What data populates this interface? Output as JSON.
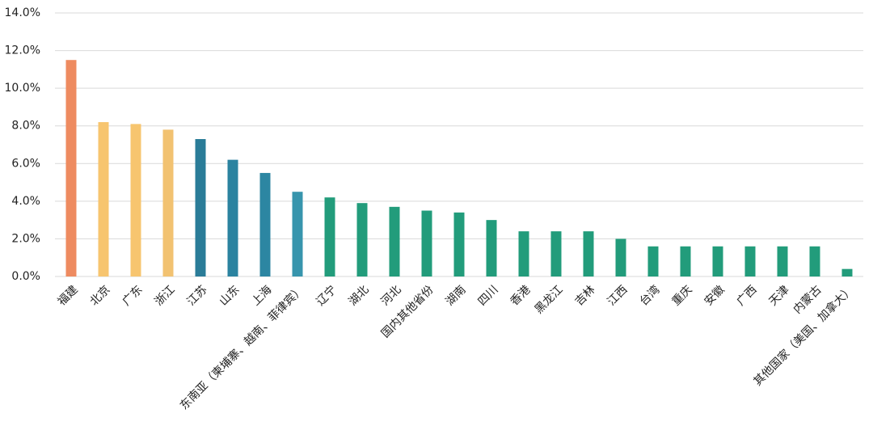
{
  "chart_data": {
    "type": "bar",
    "categories": [
      "福建",
      "北京",
      "广东",
      "浙江",
      "江苏",
      "山东",
      "上海",
      "东南亚（柬埔寨、越南、菲律宾）",
      "辽宁",
      "湖北",
      "河北",
      "国内其他省份",
      "湖南",
      "四川",
      "香港",
      "黑龙江",
      "吉林",
      "江西",
      "台湾",
      "重庆",
      "安徽",
      "广西",
      "天津",
      "内蒙古",
      "其他国家（美国、加拿大）"
    ],
    "values": [
      11.5,
      8.2,
      8.1,
      7.8,
      7.3,
      6.2,
      5.5,
      4.5,
      4.2,
      3.9,
      3.7,
      3.5,
      3.4,
      3.0,
      2.4,
      2.4,
      2.4,
      2.0,
      1.6,
      1.6,
      1.6,
      1.6,
      1.6,
      1.6,
      0.4
    ],
    "colors": [
      "#ee8b60",
      "#f7c56f",
      "#f7c56f",
      "#f2c271",
      "#2a7c98",
      "#2b83a0",
      "#2c86a2",
      "#3795ad",
      "#229c7b",
      "#229c7b",
      "#229c7b",
      "#229c7b",
      "#229c7b",
      "#229c7b",
      "#229c7b",
      "#229c7b",
      "#229c7b",
      "#229c7b",
      "#229c7b",
      "#229c7b",
      "#229c7b",
      "#229c7b",
      "#229c7b",
      "#229c7b",
      "#229c7b"
    ],
    "ylim": [
      0,
      14
    ],
    "yticks": [
      {
        "value": 0,
        "label": "0.0%"
      },
      {
        "value": 2,
        "label": "2.0%"
      },
      {
        "value": 4,
        "label": "4.0%"
      },
      {
        "value": 6,
        "label": "6.0%"
      },
      {
        "value": 8,
        "label": "8.0%"
      },
      {
        "value": 10,
        "label": "10.0%"
      },
      {
        "value": 12,
        "label": "12.0%"
      },
      {
        "value": 14,
        "label": "14.0%"
      }
    ],
    "grid": true
  }
}
